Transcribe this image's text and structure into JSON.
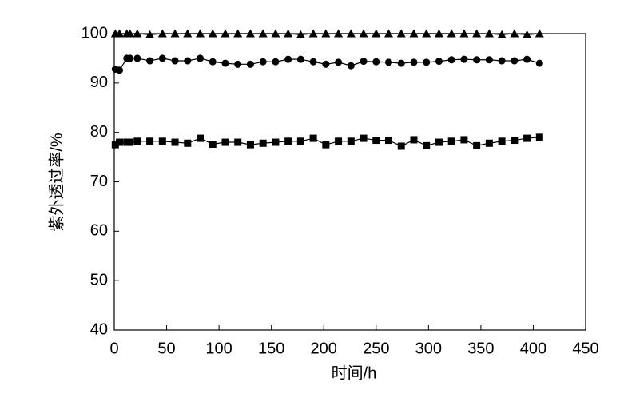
{
  "chart_data": {
    "type": "line",
    "xlabel": "时间/h",
    "ylabel": "紫外透过率/%",
    "x": [
      1,
      5,
      12,
      15,
      22,
      34,
      46,
      58,
      70,
      82,
      94,
      106,
      118,
      130,
      142,
      154,
      166,
      178,
      190,
      202,
      214,
      226,
      238,
      250,
      262,
      274,
      286,
      298,
      310,
      322,
      334,
      346,
      358,
      370,
      382,
      394,
      406
    ],
    "series": [
      {
        "color": "#000000",
        "marker": "triangle",
        "values": [
          100,
          100,
          100,
          100,
          100,
          99.8,
          100,
          100,
          100,
          100,
          100,
          100,
          100,
          100,
          100,
          100,
          100,
          99.8,
          100,
          100,
          100,
          100,
          100,
          100,
          100,
          100,
          100,
          100,
          100,
          100,
          100,
          100,
          100,
          99.8,
          100,
          99.8,
          100
        ]
      },
      {
        "color": "#000000",
        "marker": "circle",
        "values": [
          92.8,
          92.6,
          95,
          95,
          95,
          94.5,
          95,
          94.5,
          94.5,
          95,
          94.3,
          94,
          93.8,
          93.8,
          94.3,
          94.3,
          94.8,
          94.8,
          94.3,
          93.8,
          94.2,
          93.5,
          94.4,
          94.3,
          94.2,
          94,
          94.2,
          94.2,
          94.4,
          94.7,
          94.8,
          94.7,
          94.7,
          94.5,
          94.5,
          94.8,
          94
        ]
      },
      {
        "color": "#000000",
        "marker": "square",
        "values": [
          77.5,
          78,
          78,
          78,
          78.2,
          78.2,
          78.2,
          78,
          77.8,
          78.8,
          77.6,
          78,
          78,
          77.5,
          77.8,
          78,
          78.2,
          78.2,
          78.8,
          77.5,
          78.2,
          78.2,
          78.8,
          78.4,
          78.4,
          77.2,
          78.5,
          77.3,
          78,
          78.2,
          78.5,
          77.3,
          77.8,
          78.2,
          78.4,
          78.8,
          79
        ]
      }
    ],
    "xlim": [
      0,
      450
    ],
    "xticks": [
      0,
      50,
      100,
      150,
      200,
      250,
      300,
      350,
      400,
      450
    ],
    "ylim": [
      40,
      100
    ],
    "yticks": [
      40,
      50,
      60,
      70,
      80,
      90,
      100
    ]
  }
}
